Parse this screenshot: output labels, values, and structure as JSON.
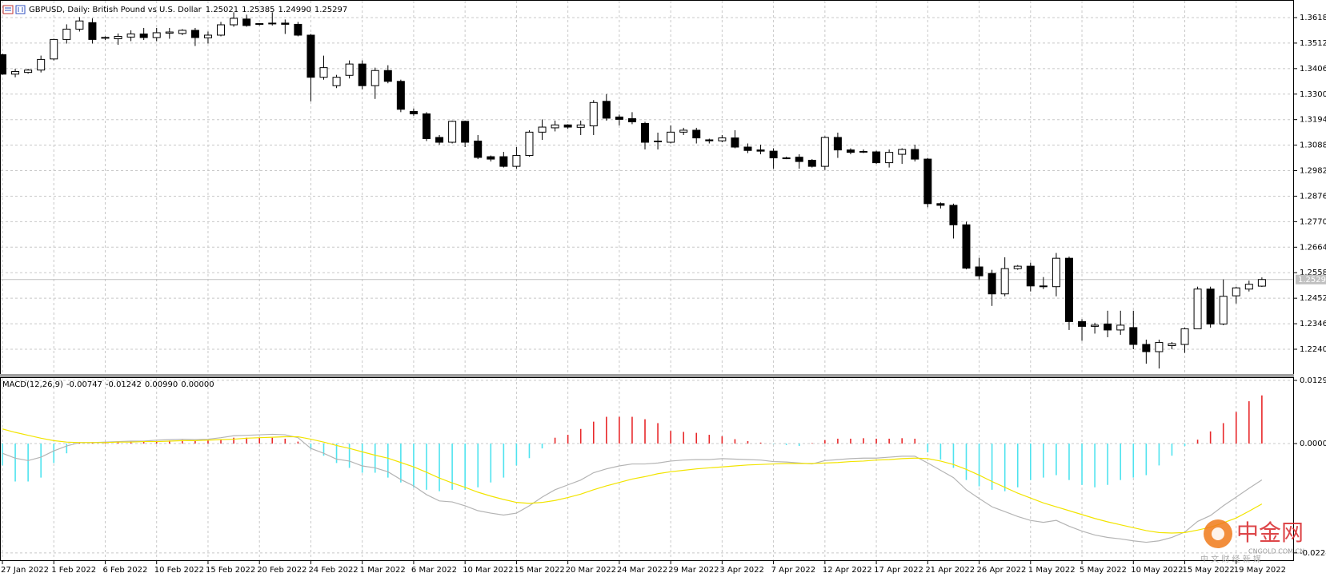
{
  "chart_data": [
    {
      "type": "candlestick",
      "title": "GBPUSD, Daily: British Pound vs U.S. Dollar",
      "header_values": [
        {
          "value": 1.25021,
          "label": "1.25021"
        },
        {
          "value": 1.25385,
          "label": "1.25385"
        },
        {
          "value": 1.2499,
          "label": "1.24990"
        },
        {
          "value": 1.25297,
          "label": "1.25297"
        }
      ],
      "categories": [
        "27 Jan 2022",
        null,
        null,
        null,
        "1 Feb 2022",
        null,
        null,
        null,
        "6 Feb 2022",
        null,
        null,
        null,
        "10 Feb 2022",
        null,
        null,
        null,
        "15 Feb 2022",
        null,
        null,
        null,
        "20 Feb 2022",
        null,
        null,
        null,
        "24 Feb 2022",
        null,
        null,
        null,
        "1 Mar 2022",
        null,
        null,
        null,
        "6 Mar 2022",
        null,
        null,
        null,
        "10 Mar 2022",
        null,
        null,
        null,
        "15 Mar 2022",
        null,
        null,
        null,
        "20 Mar 2022",
        null,
        null,
        null,
        "24 Mar 2022",
        null,
        null,
        null,
        "29 Mar 2022",
        null,
        null,
        null,
        "3 Apr 2022",
        null,
        null,
        null,
        "7 Apr 2022",
        null,
        null,
        null,
        "12 Apr 2022",
        null,
        null,
        null,
        "17 Apr 2022",
        null,
        null,
        null,
        "21 Apr 2022",
        null,
        null,
        null,
        "26 Apr 2022",
        null,
        null,
        null,
        "1 May 2022",
        null,
        null,
        null,
        "5 May 2022",
        null,
        null,
        null,
        "10 May 2022",
        null,
        null,
        null,
        "15 May 2022",
        null,
        null,
        null,
        "19 May 2022",
        null,
        null
      ],
      "open": [
        1.3464,
        1.3383,
        1.339,
        1.34,
        1.3446,
        1.3527,
        1.357,
        1.3597,
        1.3532,
        1.353,
        1.3537,
        1.355,
        1.3535,
        1.3553,
        1.3552,
        1.3565,
        1.3534,
        1.3545,
        1.3588,
        1.3612,
        1.359,
        1.3595,
        1.3595,
        1.359,
        1.3545,
        1.337,
        1.3335,
        1.3378,
        1.3425,
        1.3335,
        1.3398,
        1.3353,
        1.3228,
        1.3218,
        1.312,
        1.31,
        1.3187,
        1.3105,
        1.304,
        1.304,
        1.3,
        1.3045,
        1.3142,
        1.316,
        1.3172,
        1.3162,
        1.3168,
        1.327,
        1.3205,
        1.3198,
        1.3178,
        1.3105,
        1.31,
        1.3142,
        1.315,
        1.311,
        1.3106,
        1.3118,
        1.308,
        1.3068,
        1.3063,
        1.3035,
        1.3038,
        1.3025,
        1.3,
        1.312,
        1.3068,
        1.306,
        1.306,
        1.3015,
        1.305,
        1.307,
        1.303,
        1.2845,
        1.2838,
        1.2757,
        1.2582,
        1.2555,
        1.247,
        1.2575,
        1.2585,
        1.2503,
        1.25,
        1.2618,
        1.2355,
        1.2335,
        1.2345,
        1.232,
        1.233,
        1.226,
        1.223,
        1.2255,
        1.226,
        1.2325,
        1.249,
        1.2345,
        1.2462,
        1.249,
        1.25021
      ],
      "high": [
        1.3468,
        1.3405,
        1.3405,
        1.346,
        1.353,
        1.359,
        1.362,
        1.3615,
        1.354,
        1.3552,
        1.3565,
        1.3575,
        1.3575,
        1.3575,
        1.357,
        1.3575,
        1.356,
        1.36,
        1.364,
        1.363,
        1.3595,
        1.364,
        1.361,
        1.36,
        1.355,
        1.346,
        1.338,
        1.344,
        1.344,
        1.341,
        1.342,
        1.336,
        1.324,
        1.3225,
        1.313,
        1.319,
        1.319,
        1.313,
        1.3045,
        1.306,
        1.308,
        1.315,
        1.3195,
        1.319,
        1.3175,
        1.319,
        1.3275,
        1.33,
        1.3215,
        1.3225,
        1.3185,
        1.314,
        1.317,
        1.316,
        1.316,
        1.3115,
        1.313,
        1.315,
        1.3095,
        1.309,
        1.3075,
        1.304,
        1.305,
        1.303,
        1.3125,
        1.314,
        1.3075,
        1.307,
        1.3065,
        1.307,
        1.3075,
        1.309,
        1.3035,
        1.285,
        1.2845,
        1.277,
        1.262,
        1.257,
        1.2622,
        1.259,
        1.26,
        1.254,
        1.264,
        1.2625,
        1.2365,
        1.235,
        1.24,
        1.24,
        1.24,
        1.228,
        1.228,
        1.227,
        1.233,
        1.25,
        1.25,
        1.253,
        1.25,
        1.2525,
        1.25385
      ],
      "low": [
        1.338,
        1.337,
        1.3385,
        1.339,
        1.344,
        1.351,
        1.356,
        1.351,
        1.3525,
        1.3505,
        1.352,
        1.3525,
        1.352,
        1.353,
        1.3545,
        1.35,
        1.351,
        1.354,
        1.358,
        1.358,
        1.3585,
        1.3585,
        1.355,
        1.354,
        1.327,
        1.336,
        1.3325,
        1.3365,
        1.332,
        1.328,
        1.3345,
        1.3225,
        1.321,
        1.3105,
        1.309,
        1.3095,
        1.308,
        1.303,
        1.302,
        1.2995,
        1.299,
        1.304,
        1.311,
        1.3145,
        1.3155,
        1.313,
        1.313,
        1.319,
        1.317,
        1.3175,
        1.307,
        1.307,
        1.3095,
        1.313,
        1.3095,
        1.3095,
        1.31,
        1.3075,
        1.3055,
        1.305,
        1.299,
        1.303,
        1.299,
        1.2995,
        1.2985,
        1.3035,
        1.305,
        1.3055,
        1.301,
        1.2995,
        1.301,
        1.302,
        1.283,
        1.2825,
        1.27,
        1.2572,
        1.253,
        1.242,
        1.246,
        1.257,
        1.248,
        1.249,
        1.246,
        1.232,
        1.2275,
        1.2305,
        1.229,
        1.23,
        1.224,
        1.218,
        1.216,
        1.224,
        1.2225,
        1.2325,
        1.233,
        1.234,
        1.243,
        1.248,
        1.2499
      ],
      "close": [
        1.3383,
        1.3394,
        1.34,
        1.3444,
        1.3527,
        1.357,
        1.3604,
        1.3527,
        1.3536,
        1.354,
        1.355,
        1.3535,
        1.3555,
        1.3558,
        1.3565,
        1.3535,
        1.3545,
        1.3588,
        1.3615,
        1.3585,
        1.3593,
        1.3592,
        1.359,
        1.3545,
        1.337,
        1.341,
        1.337,
        1.3425,
        1.3335,
        1.3398,
        1.3353,
        1.3237,
        1.3218,
        1.3115,
        1.31,
        1.3187,
        1.31,
        1.3037,
        1.303,
        1.3,
        1.3045,
        1.3142,
        1.3163,
        1.3172,
        1.3163,
        1.3172,
        1.3265,
        1.32,
        1.3195,
        1.3185,
        1.31,
        1.3102,
        1.3142,
        1.315,
        1.3118,
        1.3106,
        1.3118,
        1.308,
        1.3066,
        1.3063,
        1.3035,
        1.3035,
        1.302,
        1.3,
        1.312,
        1.3068,
        1.3058,
        1.3062,
        1.3015,
        1.3058,
        1.307,
        1.303,
        1.2845,
        1.2838,
        1.2757,
        1.2577,
        1.2545,
        1.247,
        1.2575,
        1.2585,
        1.2503,
        1.25,
        1.2618,
        1.2355,
        1.2335,
        1.234,
        1.232,
        1.234,
        1.226,
        1.223,
        1.2268,
        1.2263,
        1.2325,
        1.249,
        1.2345,
        1.246,
        1.2495,
        1.251,
        1.25297
      ],
      "up_color": "#ffffff",
      "down_color": "#000000",
      "bid": 1.25297,
      "ylim": [
        1.21371,
        1.36877
      ],
      "yticks": [
        {
          "value": 1.3618,
          "label": "1.36180"
        },
        {
          "value": 1.3512,
          "label": "1.35120"
        },
        {
          "value": 1.3406,
          "label": "1.34060"
        },
        {
          "value": 1.33,
          "label": "1.33000"
        },
        {
          "value": 1.3194,
          "label": "1.31940"
        },
        {
          "value": 1.3088,
          "label": "1.30880"
        },
        {
          "value": 1.2982,
          "label": "1.29820"
        },
        {
          "value": 1.2876,
          "label": "1.28760"
        },
        {
          "value": 1.277,
          "label": "1.27700"
        },
        {
          "value": 1.2664,
          "label": "1.26640"
        },
        {
          "value": 1.2558,
          "label": "1.25580"
        },
        {
          "value": 1.2452,
          "label": "1.24520"
        },
        {
          "value": 1.2346,
          "label": "1.23460"
        },
        {
          "value": 1.224,
          "label": "1.22400"
        }
      ],
      "grid": true
    },
    {
      "type": "macd",
      "title": "MACD(12,26,9)",
      "header_values": [
        {
          "value": -0.00747,
          "label": "-0.00747"
        },
        {
          "value": -0.01242,
          "label": "-0.01242"
        },
        {
          "value": 0.0099,
          "label": "0.00990"
        },
        {
          "value": 0,
          "label": "0.00000"
        }
      ],
      "series": [
        {
          "style": "histogram",
          "color": "#e8282a",
          "negative_color": "#4fe3ef",
          "values": [
            -0.0045,
            -0.0078,
            -0.0078,
            -0.007,
            -0.004,
            -0.002,
            0.0002,
            0.0002,
            0.0003,
            0.0003,
            0.0004,
            0.0004,
            0.0005,
            0.0006,
            0.0007,
            0.0006,
            0.0007,
            0.0009,
            0.0012,
            0.0012,
            0.0012,
            0.0012,
            0.001,
            0.0004,
            -0.0012,
            -0.0025,
            -0.004,
            -0.005,
            -0.006,
            -0.006,
            -0.007,
            -0.008,
            -0.009,
            -0.0095,
            -0.0098,
            -0.0095,
            -0.0095,
            -0.009,
            -0.008,
            -0.007,
            -0.0045,
            -0.003,
            -0.001,
            0.0012,
            0.0018,
            0.003,
            0.0045,
            0.0055,
            0.0055,
            0.0055,
            0.005,
            0.0042,
            0.0026,
            0.0024,
            0.0022,
            0.0018,
            0.0015,
            0.0009,
            0.0005,
            0.0002,
            -0.0001,
            -0.0003,
            -0.0005,
            0.0001,
            0.0007,
            0.001,
            0.001,
            0.0011,
            0.001,
            0.001,
            0.0011,
            0.001,
            -0.0018,
            -0.0033,
            -0.005,
            -0.0075,
            -0.0088,
            -0.0095,
            -0.0098,
            -0.009,
            -0.0075,
            -0.007,
            -0.0065,
            -0.0075,
            -0.0085,
            -0.009,
            -0.0085,
            -0.0075,
            -0.007,
            -0.0065,
            -0.0045,
            -0.0025,
            -0.0005,
            0.0008,
            0.0025,
            0.0042,
            0.0065,
            0.0087,
            0.0099
          ]
        },
        {
          "style": "line",
          "color": "#b4b4b4",
          "values": [
            -0.002,
            -0.003,
            -0.0035,
            -0.0028,
            -0.0015,
            -0.0005,
            0.0002,
            0.0002,
            0.0003,
            0.0004,
            0.0005,
            0.0005,
            0.0007,
            0.0008,
            0.0009,
            0.0008,
            0.0009,
            0.0012,
            0.0016,
            0.0017,
            0.0018,
            0.0019,
            0.0018,
            0.0012,
            -0.001,
            -0.002,
            -0.0032,
            -0.0036,
            -0.0046,
            -0.005,
            -0.0058,
            -0.0074,
            -0.0087,
            -0.0105,
            -0.0118,
            -0.012,
            -0.0128,
            -0.0138,
            -0.0143,
            -0.0147,
            -0.0143,
            -0.0128,
            -0.011,
            -0.0095,
            -0.0085,
            -0.0075,
            -0.006,
            -0.0052,
            -0.0046,
            -0.0042,
            -0.0042,
            -0.004,
            -0.0036,
            -0.0034,
            -0.0033,
            -0.0033,
            -0.0031,
            -0.0032,
            -0.0033,
            -0.0034,
            -0.0037,
            -0.0038,
            -0.004,
            -0.0042,
            -0.0035,
            -0.0033,
            -0.0031,
            -0.003,
            -0.003,
            -0.0028,
            -0.0026,
            -0.0026,
            -0.004,
            -0.0055,
            -0.007,
            -0.0095,
            -0.0113,
            -0.013,
            -0.014,
            -0.015,
            -0.0158,
            -0.0162,
            -0.0158,
            -0.017,
            -0.018,
            -0.0188,
            -0.0193,
            -0.0196,
            -0.02,
            -0.0203,
            -0.02,
            -0.0193,
            -0.0182,
            -0.016,
            -0.0148,
            -0.0128,
            -0.011,
            -0.0092,
            -0.00747
          ]
        },
        {
          "style": "line",
          "color": "#f2e400",
          "values": [
            0.003,
            0.0023,
            0.0017,
            0.0011,
            0.0006,
            0.0003,
            0.0002,
            0.0002,
            0.0002,
            0.0003,
            0.0003,
            0.0004,
            0.0004,
            0.0005,
            0.0006,
            0.0006,
            0.0007,
            0.0008,
            0.0009,
            0.0011,
            0.0012,
            0.0013,
            0.0014,
            0.0014,
            0.0009,
            0.0003,
            -0.0004,
            -0.001,
            -0.0017,
            -0.0024,
            -0.003,
            -0.0039,
            -0.0048,
            -0.0059,
            -0.0071,
            -0.0081,
            -0.009,
            -0.01,
            -0.0108,
            -0.0115,
            -0.0121,
            -0.0123,
            -0.0121,
            -0.0117,
            -0.0111,
            -0.0104,
            -0.0095,
            -0.0087,
            -0.008,
            -0.0073,
            -0.0068,
            -0.0062,
            -0.0058,
            -0.0055,
            -0.0052,
            -0.005,
            -0.0048,
            -0.0046,
            -0.0044,
            -0.0043,
            -0.0042,
            -0.0041,
            -0.0041,
            -0.0041,
            -0.004,
            -0.0039,
            -0.0037,
            -0.0036,
            -0.0034,
            -0.0033,
            -0.0031,
            -0.003,
            -0.0031,
            -0.0036,
            -0.0043,
            -0.0053,
            -0.0065,
            -0.0078,
            -0.009,
            -0.0102,
            -0.0112,
            -0.0122,
            -0.013,
            -0.0138,
            -0.0146,
            -0.0154,
            -0.0161,
            -0.0167,
            -0.0173,
            -0.0179,
            -0.0183,
            -0.0184,
            -0.0183,
            -0.0178,
            -0.0172,
            -0.0163,
            -0.0153,
            -0.0139,
            -0.01242
          ]
        }
      ],
      "ylim": [
        -0.02415,
        0.01364
      ],
      "yticks": [
        {
          "value": 0.01298,
          "label": "0.01298"
        },
        {
          "value": 0,
          "label": "0.00000"
        },
        {
          "value": -0.02248,
          "label": "-0.02248"
        }
      ],
      "grid": true
    }
  ],
  "watermark": {
    "brand": "中金网",
    "site": "CNGOLD.COM.CN",
    "tagline": "中 文 财 经 新 媒"
  }
}
